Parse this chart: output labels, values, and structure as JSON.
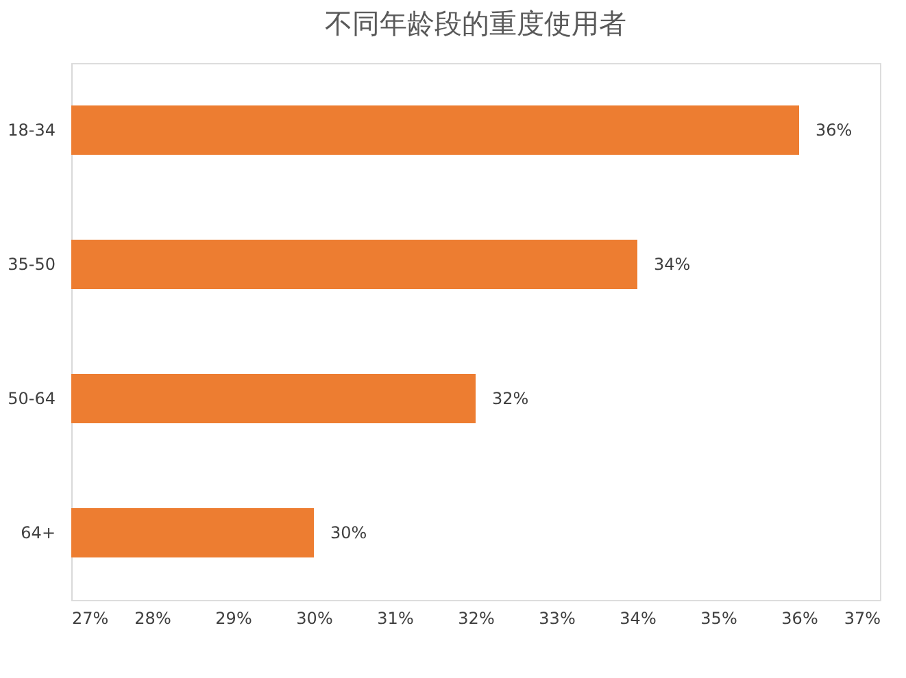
{
  "chart_data": {
    "type": "bar",
    "orientation": "horizontal",
    "title": "不同年龄段的重度使用者",
    "categories": [
      "18-34",
      "35-50",
      "50-64",
      "64+"
    ],
    "values": [
      36,
      34,
      32,
      30
    ],
    "value_labels": [
      "36%",
      "34%",
      "32%",
      "30%"
    ],
    "color": "#ed7d31",
    "xlim": [
      27,
      37
    ],
    "xticks": [
      {
        "value": 27,
        "label": "27%"
      },
      {
        "value": 28,
        "label": "28%"
      },
      {
        "value": 29,
        "label": "29%"
      },
      {
        "value": 30,
        "label": "30%"
      },
      {
        "value": 31,
        "label": "31%"
      },
      {
        "value": 32,
        "label": "32%"
      },
      {
        "value": 33,
        "label": "33%"
      },
      {
        "value": 34,
        "label": "34%"
      },
      {
        "value": 35,
        "label": "35%"
      },
      {
        "value": 36,
        "label": "36%"
      },
      {
        "value": 37,
        "label": "37%"
      }
    ],
    "grid": false
  }
}
